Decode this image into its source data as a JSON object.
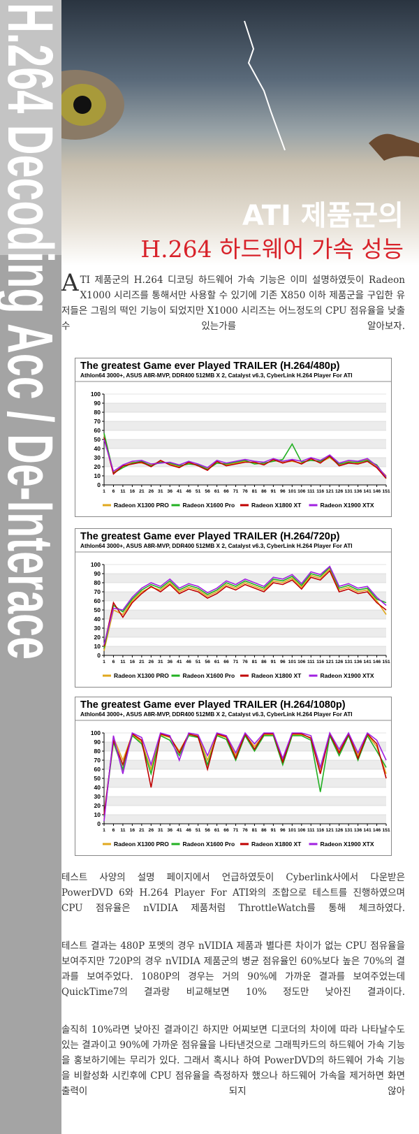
{
  "document": {
    "side_title": "H.264 Decoding Acc / De-Interace",
    "headline": "ATI 제품군의",
    "subheadline": "H.264 하드웨어 가속 성능",
    "paragraphs": [
      "ATI 제품군의 H.264 디코딩 하드웨어 가속 기능은 이미 설명하였듯이 Radeon X1000 시리즈를 통해서만 사용할 수 있기에 기존 X850 이하 제품군을 구입한 유저들은 그림의 떡인 기능이 되었지만 X1000 시리즈는 어느정도의 CPU 점유율을 낮출수 있는가를 알아보자.",
      "테스트 사양의 설명 페이지에서 언급하였듯이 Cyberlink사에서 다운받은 PowerDVD 6와 H.264 Player For ATI와의 조합으로 테스트를 진행하였으며 CPU 점유율은 nVIDIA 제품처럼 ThrottleWatch를 통해 체크하였다.",
      "테스트 결과는 480P 포멧의 경우 nVIDIA 제품과 별다른 차이가 없는 CPU 점유율을 보여주지만 720P의 경우 nVIDIA 제품군의 병균 점유율인 60%보다 높은 70%의 결과를 보여주었다. 1080P의 경우는 거의 90%에 가까운 결과를 보여주었는데 QuickTime7의 결과랑 비교해보면 10% 정도만 낮아진 결과이다.",
      "솔직히 10%라면 낮아진 결과이긴 하지만 어찌보면 디코더의 차이에 따라 나타날수도 있는 결과이고 90%에 가까운 점유율을 나타낸것으로 그래픽카드의 하드웨어 가속 기능을 홍보하기에는 무리가 있다. 그래서 혹시나 하여 PowerDVD의 하드웨어 가속 기능을 비활성화 시킨후에 CPU 점유율을 측정하자 했으나 하드웨어 가속을 제거하면 화면 출력이 되지 않아"
    ]
  },
  "chart_data": [
    {
      "type": "line",
      "title": "The greatest Game ever Played TRAILER (H.264/480p)",
      "subtitle": "Athlon64 3000+, ASUS A8R-MVP, DDR400 512MB X 2, Catalyst v6.3, CyberLink H.264 Player For ATI",
      "x": [
        1,
        6,
        11,
        16,
        21,
        26,
        31,
        36,
        41,
        46,
        51,
        56,
        61,
        66,
        71,
        76,
        81,
        86,
        91,
        96,
        101,
        106,
        111,
        116,
        121,
        126,
        131,
        136,
        141,
        146,
        151
      ],
      "xlim": [
        1,
        151
      ],
      "xticks": [
        1,
        6,
        11,
        16,
        21,
        26,
        31,
        36,
        41,
        46,
        51,
        56,
        61,
        66,
        71,
        76,
        81,
        86,
        91,
        96,
        101,
        106,
        111,
        116,
        121,
        126,
        131,
        136,
        141,
        146,
        151
      ],
      "ylim": [
        0,
        100
      ],
      "yticks": [
        0,
        10,
        20,
        30,
        40,
        50,
        60,
        70,
        80,
        90,
        100
      ],
      "grid": true,
      "series": [
        {
          "name": "Radeon X1300 PRO",
          "color": "#e0a81e",
          "values": [
            55,
            14,
            20,
            25,
            24,
            22,
            26,
            23,
            20,
            24,
            22,
            18,
            25,
            22,
            24,
            26,
            24,
            23,
            27,
            25,
            26,
            24,
            28,
            25,
            30,
            22,
            26,
            24,
            28,
            20,
            10
          ]
        },
        {
          "name": "Radeon X1600 Pro",
          "color": "#22b022",
          "values": [
            57,
            13,
            19,
            24,
            26,
            21,
            25,
            24,
            21,
            23,
            22,
            17,
            24,
            23,
            25,
            27,
            23,
            24,
            26,
            28,
            45,
            25,
            27,
            26,
            31,
            23,
            25,
            25,
            27,
            22,
            8
          ]
        },
        {
          "name": "Radeon X1800 XT",
          "color": "#c00000",
          "values": [
            52,
            12,
            21,
            23,
            25,
            20,
            27,
            22,
            19,
            25,
            21,
            16,
            26,
            21,
            23,
            25,
            25,
            22,
            28,
            24,
            27,
            23,
            29,
            24,
            32,
            21,
            24,
            23,
            26,
            19,
            7
          ]
        },
        {
          "name": "Radeon X1900 XTX",
          "color": "#a020e0",
          "values": [
            50,
            15,
            22,
            26,
            27,
            23,
            24,
            25,
            22,
            26,
            23,
            19,
            27,
            24,
            26,
            28,
            26,
            25,
            29,
            26,
            28,
            26,
            30,
            27,
            33,
            24,
            27,
            26,
            29,
            21,
            9
          ]
        }
      ]
    },
    {
      "type": "line",
      "title": "The greatest Game ever Played TRAILER (H.264/720p)",
      "subtitle": "Athlon64 3000+, ASUS A8R-MVP, DDR400 512MB X 2, Catalyst v6.3, CyberLink H.264 Player For ATI",
      "x": [
        1,
        6,
        11,
        16,
        21,
        26,
        31,
        36,
        41,
        46,
        51,
        56,
        61,
        66,
        71,
        76,
        81,
        86,
        91,
        96,
        101,
        106,
        111,
        116,
        121,
        126,
        131,
        136,
        141,
        146,
        151
      ],
      "xlim": [
        1,
        151
      ],
      "xticks": [
        1,
        6,
        11,
        16,
        21,
        26,
        31,
        36,
        41,
        46,
        51,
        56,
        61,
        66,
        71,
        76,
        81,
        86,
        91,
        96,
        101,
        106,
        111,
        116,
        121,
        126,
        131,
        136,
        141,
        146,
        151
      ],
      "ylim": [
        0,
        100
      ],
      "yticks": [
        0,
        10,
        20,
        30,
        40,
        50,
        60,
        70,
        80,
        90,
        100
      ],
      "grid": true,
      "series": [
        {
          "name": "Radeon X1300 PRO",
          "color": "#e0a81e",
          "values": [
            5,
            50,
            45,
            60,
            70,
            75,
            72,
            80,
            70,
            75,
            72,
            65,
            70,
            78,
            74,
            80,
            76,
            72,
            82,
            80,
            85,
            75,
            88,
            85,
            95,
            72,
            75,
            70,
            72,
            60,
            45
          ]
        },
        {
          "name": "Radeon X1600 Pro",
          "color": "#22b022",
          "values": [
            8,
            55,
            48,
            62,
            72,
            78,
            74,
            82,
            72,
            77,
            74,
            67,
            72,
            80,
            76,
            82,
            78,
            74,
            84,
            82,
            87,
            77,
            90,
            87,
            97,
            74,
            77,
            72,
            74,
            62,
            58
          ]
        },
        {
          "name": "Radeon X1800 XT",
          "color": "#c00000",
          "values": [
            10,
            58,
            42,
            58,
            68,
            76,
            70,
            78,
            68,
            73,
            70,
            63,
            68,
            76,
            72,
            78,
            74,
            70,
            80,
            78,
            83,
            73,
            86,
            83,
            93,
            70,
            73,
            68,
            70,
            58,
            50
          ]
        },
        {
          "name": "Radeon X1900 XTX",
          "color": "#a020e0",
          "values": [
            12,
            52,
            50,
            64,
            74,
            80,
            76,
            84,
            74,
            79,
            76,
            69,
            74,
            82,
            78,
            84,
            80,
            76,
            86,
            84,
            89,
            79,
            92,
            89,
            98,
            76,
            79,
            74,
            76,
            64,
            55
          ]
        }
      ]
    },
    {
      "type": "line",
      "title": "The greatest Game ever Played TRAILER (H.264/1080p)",
      "subtitle": "Athlon64 3000+, ASUS A8R-MVP, DDR400 512MB X 2, Catalyst v6.3, CyberLink H.264 Player For ATI",
      "x": [
        1,
        6,
        11,
        16,
        21,
        26,
        31,
        36,
        41,
        46,
        51,
        56,
        61,
        66,
        71,
        76,
        81,
        86,
        91,
        96,
        101,
        106,
        111,
        116,
        121,
        126,
        131,
        136,
        141,
        146,
        151
      ],
      "xlim": [
        1,
        151
      ],
      "xticks": [
        1,
        6,
        11,
        16,
        21,
        26,
        31,
        36,
        41,
        46,
        51,
        56,
        61,
        66,
        71,
        76,
        81,
        86,
        91,
        96,
        101,
        106,
        111,
        116,
        121,
        126,
        131,
        136,
        141,
        146,
        151
      ],
      "ylim": [
        0,
        100
      ],
      "yticks": [
        0,
        10,
        20,
        30,
        40,
        50,
        60,
        70,
        80,
        90,
        100
      ],
      "grid": true,
      "series": [
        {
          "name": "Radeon X1300 PRO",
          "color": "#e0a81e",
          "values": [
            5,
            95,
            70,
            98,
            90,
            60,
            98,
            95,
            80,
            98,
            97,
            70,
            98,
            95,
            75,
            98,
            85,
            98,
            98,
            70,
            98,
            98,
            95,
            60,
            98,
            80,
            98,
            75,
            98,
            85,
            55
          ]
        },
        {
          "name": "Radeon X1600 Pro",
          "color": "#22b022",
          "values": [
            8,
            90,
            60,
            97,
            88,
            55,
            97,
            92,
            75,
            97,
            95,
            65,
            97,
            93,
            70,
            97,
            80,
            97,
            97,
            65,
            97,
            97,
            92,
            35,
            97,
            75,
            97,
            70,
            97,
            80,
            62
          ]
        },
        {
          "name": "Radeon X1800 XT",
          "color": "#c00000",
          "values": [
            10,
            92,
            65,
            99,
            92,
            40,
            99,
            96,
            78,
            99,
            96,
            60,
            99,
            96,
            72,
            99,
            82,
            99,
            99,
            68,
            99,
            99,
            94,
            55,
            99,
            78,
            99,
            72,
            99,
            88,
            50
          ]
        },
        {
          "name": "Radeon X1900 XTX",
          "color": "#a020e0",
          "values": [
            3,
            97,
            55,
            100,
            95,
            65,
            100,
            97,
            70,
            100,
            98,
            75,
            100,
            97,
            78,
            100,
            88,
            100,
            100,
            72,
            100,
            100,
            97,
            62,
            100,
            82,
            100,
            78,
            100,
            92,
            70
          ]
        }
      ]
    }
  ]
}
